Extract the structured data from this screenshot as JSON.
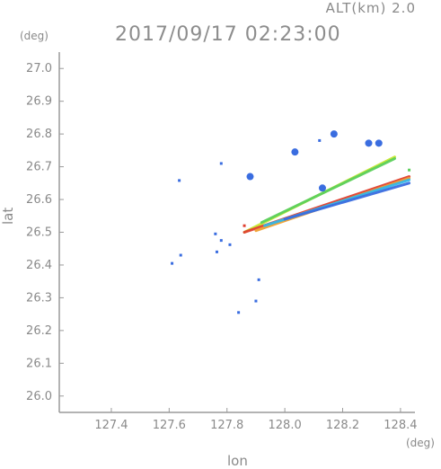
{
  "header": {
    "alt_label": "ALT(km) 2.0",
    "datetime": "2017/09/17 02:23:00"
  },
  "chart_data": {
    "type": "scatter",
    "title": "2017/09/17 02:23:00",
    "xlabel": "lon",
    "ylabel": "lat",
    "x_unit": "(deg)",
    "y_unit": "(deg)",
    "xlim": [
      127.22,
      128.45
    ],
    "ylim": [
      25.95,
      27.05
    ],
    "x_ticks": [
      "127.4",
      "127.6",
      "127.8",
      "128.0",
      "128.2",
      "128.4"
    ],
    "y_ticks": [
      "26.0",
      "26.1",
      "26.2",
      "26.3",
      "26.4",
      "26.5",
      "26.6",
      "26.7",
      "26.8",
      "26.9",
      "27.0"
    ],
    "grid": false,
    "colors": {
      "blue": "#3a6de0",
      "cyan": "#34b8e8",
      "green": "#5cd05c",
      "lime": "#c8e830",
      "orange": "#f0a030",
      "red": "#e04030",
      "axis": "#9a9a9a"
    },
    "streaks": [
      {
        "from": [
          127.86,
          26.5
        ],
        "to": [
          128.38,
          26.73
        ],
        "color": "lime"
      },
      {
        "from": [
          127.92,
          26.53
        ],
        "to": [
          128.38,
          26.725
        ],
        "color": "green"
      },
      {
        "from": [
          127.86,
          26.5
        ],
        "to": [
          128.43,
          26.67
        ],
        "color": "red"
      },
      {
        "from": [
          127.9,
          26.505
        ],
        "to": [
          128.43,
          26.665
        ],
        "color": "orange"
      },
      {
        "from": [
          127.93,
          26.52
        ],
        "to": [
          128.43,
          26.66
        ],
        "color": "cyan"
      },
      {
        "from": [
          128.0,
          26.54
        ],
        "to": [
          128.43,
          26.65
        ],
        "color": "blue"
      }
    ],
    "blobs": [
      {
        "lon": 128.29,
        "lat": 26.772,
        "color": "blue"
      },
      {
        "lon": 128.325,
        "lat": 26.772,
        "color": "blue"
      },
      {
        "lon": 128.17,
        "lat": 26.8,
        "color": "blue"
      },
      {
        "lon": 128.035,
        "lat": 26.745,
        "color": "blue"
      },
      {
        "lon": 128.13,
        "lat": 26.635,
        "color": "blue"
      },
      {
        "lon": 127.88,
        "lat": 26.67,
        "color": "blue"
      }
    ],
    "points": [
      {
        "lon": 128.12,
        "lat": 26.78,
        "color": "blue"
      },
      {
        "lon": 127.635,
        "lat": 26.658,
        "color": "blue"
      },
      {
        "lon": 127.78,
        "lat": 26.71,
        "color": "blue"
      },
      {
        "lon": 127.76,
        "lat": 26.495,
        "color": "blue"
      },
      {
        "lon": 127.765,
        "lat": 26.44,
        "color": "blue"
      },
      {
        "lon": 127.78,
        "lat": 26.475,
        "color": "blue"
      },
      {
        "lon": 127.81,
        "lat": 26.462,
        "color": "blue"
      },
      {
        "lon": 127.64,
        "lat": 26.43,
        "color": "blue"
      },
      {
        "lon": 127.61,
        "lat": 26.405,
        "color": "blue"
      },
      {
        "lon": 127.84,
        "lat": 26.255,
        "color": "blue"
      },
      {
        "lon": 127.9,
        "lat": 26.29,
        "color": "blue"
      },
      {
        "lon": 127.91,
        "lat": 26.355,
        "color": "blue"
      },
      {
        "lon": 127.86,
        "lat": 26.52,
        "color": "red"
      },
      {
        "lon": 128.43,
        "lat": 26.69,
        "color": "green"
      }
    ]
  }
}
